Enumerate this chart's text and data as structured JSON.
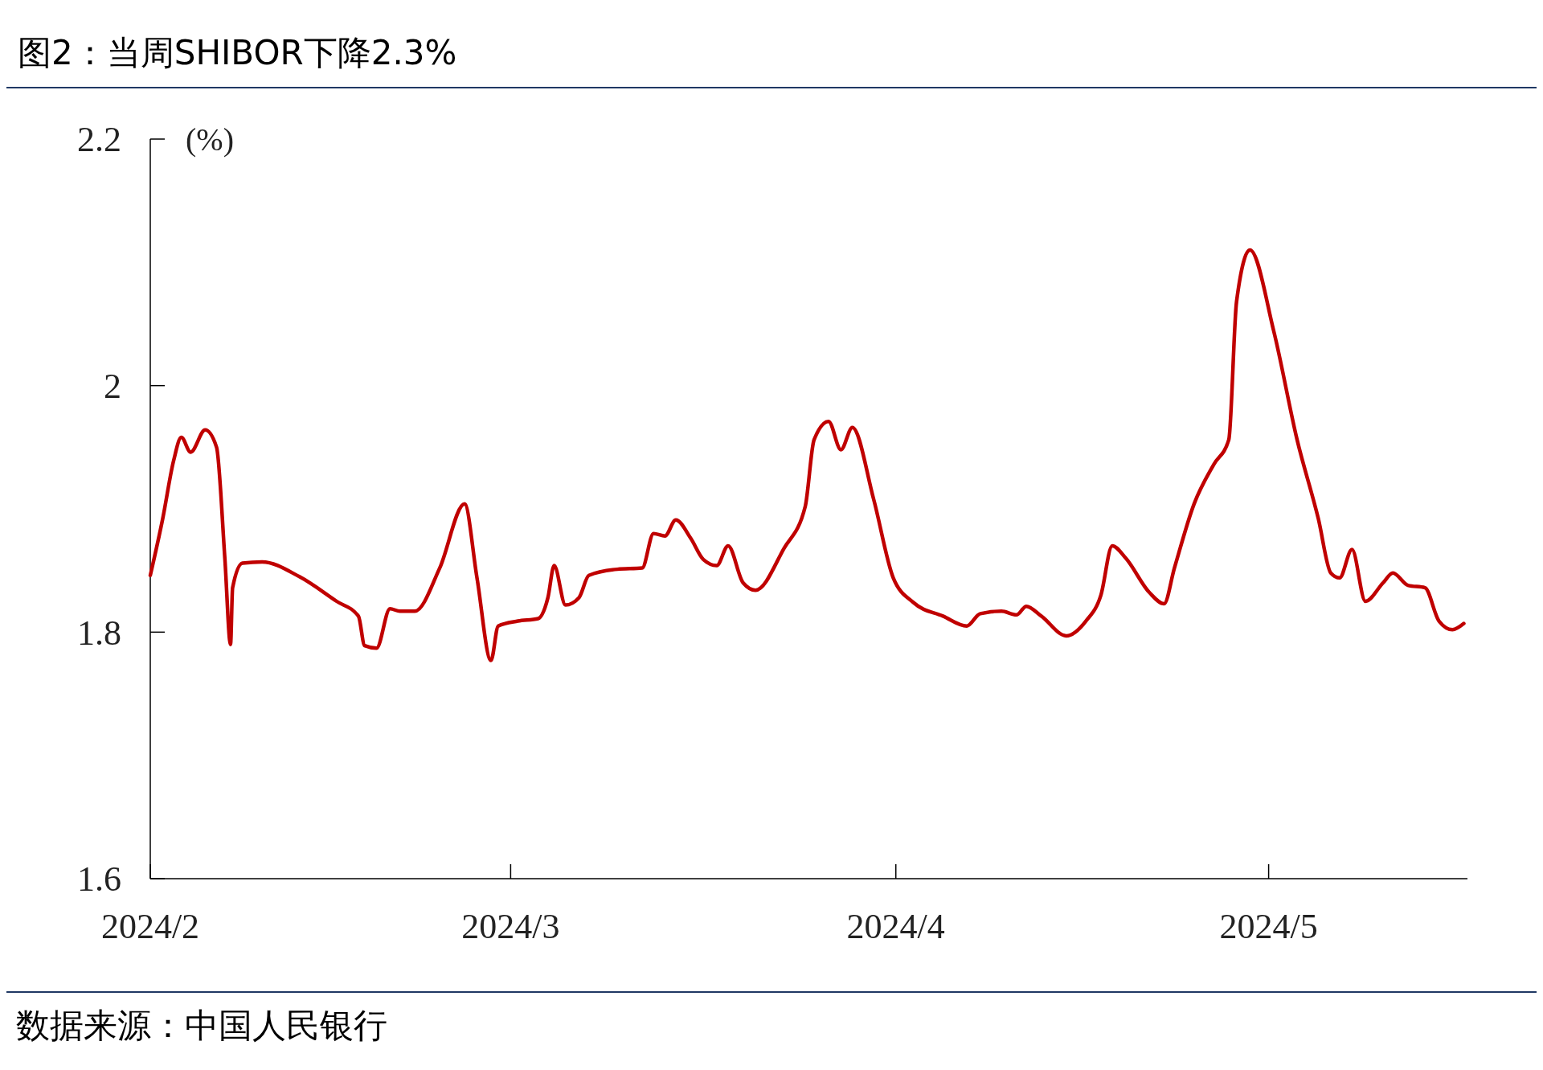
{
  "chart_data": {
    "type": "line",
    "title": "图2：当周SHIBOR下降2.3%",
    "ylabel": "(%)",
    "annotations": [
      "数据来源：中国人民银行"
    ],
    "x": [
      "2024-02-01",
      "2024-02-02",
      "2024-02-02T21:00",
      "2024-02-03T12:00",
      "2024-02-04T06:00",
      "2024-02-05T10:00",
      "2024-02-06T08:00",
      "2024-02-07",
      "2024-02-07T11:00",
      "2024-02-07T15:00",
      "2024-02-08T10:00",
      "2024-02-10",
      "2024-02-13",
      "2024-02-16",
      "2024-02-17T18:00",
      "2024-02-18T06:00",
      "2024-02-19T05:00",
      "2024-02-20T07:00",
      "2024-02-21T02:00",
      "2024-02-22T07:00",
      "2024-02-24T07:00",
      "2024-02-26T07:00",
      "2024-02-27T07:00",
      "2024-02-28T10:00",
      "2024-02-29",
      "2024-03-01T14:00",
      "2024-03-03T05:00",
      "2024-03-04",
      "2024-03-04T12:00",
      "2024-03-05T10:00",
      "2024-03-06T12:00",
      "2024-03-07T07:00",
      "2024-03-09T14:00",
      "2024-03-11T14:00",
      "2024-03-12T12:00",
      "2024-03-13T10:00",
      "2024-03-14T07:00",
      "2024-03-15T12:00",
      "2024-03-16T12:00",
      "2024-03-17T14:00",
      "2024-03-18T12:00",
      "2024-03-19T17:00",
      "2024-03-20T17:00",
      "2024-03-23",
      "2024-03-24T17:00",
      "2024-03-25T10:00",
      "2024-03-26T14:00",
      "2024-03-27T14:00",
      "2024-03-28T12:00",
      "2024-03-30T05:00",
      "2024-03-31T19:00",
      "2024-04-02T10:00",
      "2024-04-04T19:00",
      "2024-04-06T17:00",
      "2024-04-07T19:00",
      "2024-04-09T12:00",
      "2024-04-10T17:00",
      "2024-04-11T12:00",
      "2024-04-12T17:00",
      "2024-04-14T17:00",
      "2024-04-16T07:00",
      "2024-04-17T12:00",
      "2024-04-18T10:00",
      "2024-04-19T12:00",
      "2024-04-21T10:00",
      "2024-04-22T14:00",
      "2024-04-23T10:00",
      "2024-04-25",
      "2024-04-26T14:00",
      "2024-04-27T19:00",
      "2024-04-28T10:00",
      "2024-04-29T12:00",
      "2024-05-01T10:00",
      "2024-05-03T07:00",
      "2024-05-05",
      "2024-05-06",
      "2024-05-06T17:00",
      "2024-05-07T17:00",
      "2024-05-08T19:00",
      "2024-05-10T05:00",
      "2024-05-11",
      "2024-05-12T05:00",
      "2024-05-13T14:00",
      "2024-05-14T17:00",
      "2024-05-15T19:00",
      "2024-05-16T17:00"
    ],
    "series": [
      {
        "color": "#c00000",
        "values": [
          1.846,
          1.892,
          1.939,
          1.958,
          1.946,
          1.964,
          1.95,
          1.86,
          1.79,
          1.836,
          1.856,
          1.857,
          1.845,
          1.825,
          1.813,
          1.789,
          1.787,
          1.819,
          1.817,
          1.817,
          1.852,
          1.904,
          1.844,
          1.777,
          1.805,
          1.809,
          1.811,
          1.828,
          1.854,
          1.822,
          1.828,
          1.846,
          1.851,
          1.852,
          1.88,
          1.878,
          1.891,
          1.876,
          1.859,
          1.854,
          1.87,
          1.84,
          1.834,
          1.868,
          1.902,
          1.956,
          1.971,
          1.948,
          1.966,
          1.908,
          1.844,
          1.824,
          1.813,
          1.805,
          1.815,
          1.817,
          1.814,
          1.821,
          1.813,
          1.797,
          1.809,
          1.83,
          1.87,
          1.86,
          1.832,
          1.823,
          1.852,
          1.904,
          1.936,
          1.956,
          2.068,
          2.11,
          2.044,
          1.956,
          1.892,
          1.848,
          1.844,
          1.867,
          1.825,
          1.84,
          1.848,
          1.838,
          1.836,
          1.809,
          1.802,
          1.807
        ]
      }
    ],
    "xlim": [
      "2024-02-01",
      "2024-05-17"
    ],
    "xticks": [
      {
        "value": "2024-02-01",
        "label": "2024/2"
      },
      {
        "value": "2024-03-01",
        "label": "2024/3"
      },
      {
        "value": "2024-04-01",
        "label": "2024/4"
      },
      {
        "value": "2024-05-01",
        "label": "2024/5"
      }
    ],
    "ylim": [
      1.6,
      2.2
    ],
    "yticks": [
      1.6,
      1.8,
      2,
      2.2
    ],
    "line_style": "solid",
    "marker": "none"
  }
}
